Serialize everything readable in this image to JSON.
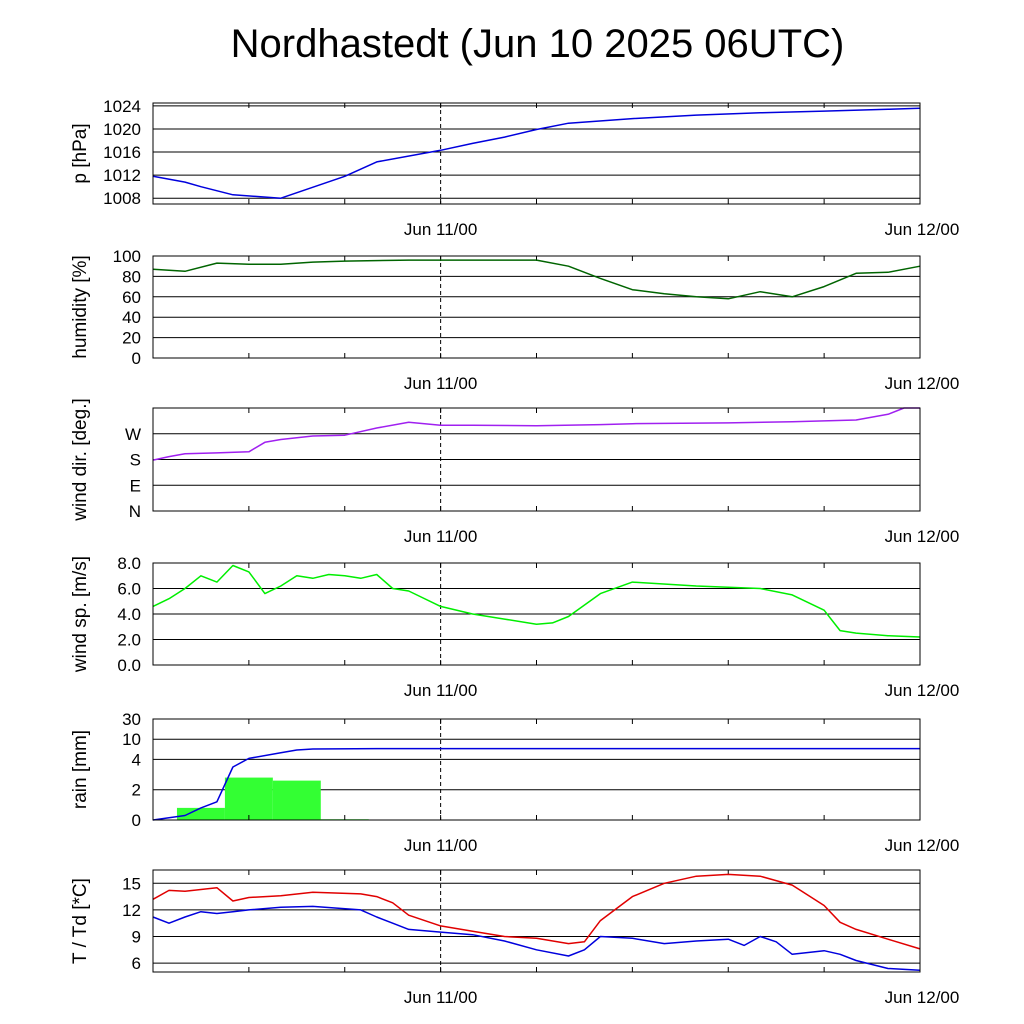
{
  "title": "Nordhastedt (Jun 10 2025 06UTC)",
  "colors": {
    "pressure": "#0000dd",
    "humidity": "#006400",
    "wind_dir": "#a020f0",
    "wind_speed": "#00ee00",
    "rain_total": "#0000dd",
    "rain_bars": "#33ff33",
    "temperature": "#e00000",
    "dewpoint": "#0000dd"
  },
  "chart_data": [
    {
      "type": "line",
      "ylabel": "p [hPa]",
      "x_ticks": [
        "Jun 11/00",
        "Jun 12/00"
      ],
      "ylim": [
        1007,
        1024.5
      ],
      "y_ticks": [
        1008,
        1012,
        1016,
        1020,
        1024
      ],
      "grid": true,
      "series": [
        {
          "x": [
            0,
            2,
            3,
            5,
            8,
            12,
            14,
            18,
            20,
            22,
            24,
            26,
            30,
            34,
            38,
            42,
            46,
            48
          ],
          "y": [
            1011.8,
            1010.8,
            1010.0,
            1008.6,
            1008.0,
            1011.8,
            1014.3,
            1016.3,
            1017.5,
            1018.6,
            1019.9,
            1021.0,
            1021.8,
            1022.4,
            1022.8,
            1023.1,
            1023.4,
            1023.6
          ]
        }
      ]
    },
    {
      "type": "line",
      "ylabel": "humidity [%]",
      "x_ticks": [
        "Jun 11/00",
        "Jun 12/00"
      ],
      "ylim": [
        0,
        100
      ],
      "y_ticks": [
        0,
        20,
        40,
        60,
        80,
        100
      ],
      "grid": true,
      "series": [
        {
          "x": [
            0,
            2,
            4,
            6,
            8,
            10,
            12,
            16,
            18,
            20,
            24,
            26,
            28,
            30,
            32,
            34,
            36,
            38,
            40,
            42,
            44,
            46,
            48
          ],
          "y": [
            87,
            85,
            93,
            92,
            92,
            94,
            95,
            96,
            96,
            96,
            96,
            90,
            78,
            67,
            63,
            60,
            58,
            65,
            60,
            70,
            83,
            84,
            90
          ]
        }
      ]
    },
    {
      "type": "line",
      "ylabel": "wind dir. [deg.]",
      "x_ticks": [
        "Jun 11/00",
        "Jun 12/00"
      ],
      "ylim": [
        0,
        360
      ],
      "y_ticks": [
        "N",
        "E",
        "S",
        "W"
      ],
      "grid": true,
      "series": [
        {
          "x": [
            0,
            1,
            2,
            4,
            6,
            7,
            8,
            10,
            12,
            14,
            16,
            18,
            20,
            24,
            28,
            30,
            36,
            40,
            44,
            46,
            47,
            48
          ],
          "y": [
            178,
            190,
            200,
            203,
            207,
            240,
            250,
            262,
            265,
            290,
            310,
            300,
            300,
            298,
            302,
            305,
            308,
            312,
            318,
            338,
            360,
            360
          ]
        }
      ]
    },
    {
      "type": "line",
      "ylabel": "wind sp. [m/s]",
      "x_ticks": [
        "Jun 11/00",
        "Jun 12/00"
      ],
      "ylim": [
        0,
        8
      ],
      "y_ticks": [
        "0.0",
        "2.0",
        "4.0",
        "6.0",
        "8.0"
      ],
      "grid": true,
      "series": [
        {
          "x": [
            0,
            1,
            2,
            3,
            4,
            5,
            6,
            7,
            8,
            9,
            10,
            11,
            12,
            13,
            14,
            15,
            16,
            18,
            20,
            22,
            24,
            25,
            26,
            28,
            30,
            34,
            36,
            38,
            40,
            42,
            43,
            44,
            46,
            48
          ],
          "y": [
            4.6,
            5.2,
            6.0,
            7.0,
            6.5,
            7.8,
            7.3,
            5.6,
            6.2,
            7.0,
            6.8,
            7.1,
            7.0,
            6.8,
            7.1,
            6.0,
            5.8,
            4.6,
            4.0,
            3.6,
            3.2,
            3.3,
            3.8,
            5.6,
            6.5,
            6.2,
            6.1,
            6.0,
            5.5,
            4.3,
            2.7,
            2.5,
            2.3,
            2.2
          ]
        }
      ]
    },
    {
      "type": "bar",
      "ylabel": "rain [mm]",
      "x_ticks": [
        "Jun 11/00",
        "Jun 12/00"
      ],
      "y_ticks": [
        "0",
        "2",
        "4",
        "10",
        "30"
      ],
      "grid": true,
      "bars": [
        {
          "x0": 1.5,
          "x1": 4.5,
          "value": 0.8
        },
        {
          "x0": 4.5,
          "x1": 7.5,
          "value": 2.8
        },
        {
          "x0": 7.5,
          "x1": 10.5,
          "value": 2.6
        },
        {
          "x0": 10.5,
          "x1": 13.5,
          "value": 0.05
        }
      ],
      "series": [
        {
          "x": [
            0,
            2,
            3,
            4,
            5,
            6,
            8,
            9,
            10,
            14,
            20,
            30,
            48
          ],
          "y": [
            0,
            0.3,
            0.8,
            1.2,
            3.5,
            4.3,
            6.0,
            6.8,
            7.1,
            7.2,
            7.2,
            7.2,
            7.2
          ]
        }
      ]
    },
    {
      "type": "line",
      "ylabel": "T / Td [*C]",
      "x_ticks": [
        "Jun 11/00",
        "Jun 12/00"
      ],
      "ylim": [
        5,
        16.5
      ],
      "y_ticks": [
        6,
        9,
        12,
        15
      ],
      "grid": true,
      "series": [
        {
          "x": [
            0,
            1,
            2,
            3,
            4,
            5,
            6,
            8,
            10,
            13,
            14,
            15,
            16,
            18,
            20,
            22,
            24,
            26,
            27,
            28,
            30,
            32,
            34,
            36,
            38,
            40,
            42,
            43,
            44,
            46,
            48
          ],
          "y": [
            13.2,
            14.2,
            14.1,
            14.3,
            14.5,
            13.0,
            13.4,
            13.6,
            14.0,
            13.8,
            13.5,
            12.8,
            11.4,
            10.2,
            9.6,
            9.0,
            8.8,
            8.2,
            8.4,
            10.8,
            13.5,
            15.0,
            15.8,
            16.0,
            15.8,
            14.8,
            12.5,
            10.6,
            9.8,
            8.7,
            7.6
          ]
        },
        {
          "x": [
            0,
            1,
            2,
            3,
            4,
            5,
            6,
            8,
            10,
            13,
            14,
            15,
            16,
            18,
            20,
            22,
            24,
            26,
            27,
            28,
            30,
            32,
            34,
            36,
            37,
            38,
            39,
            40,
            42,
            43,
            44,
            46,
            48
          ],
          "y": [
            11.2,
            10.5,
            11.2,
            11.8,
            11.6,
            11.8,
            12.0,
            12.3,
            12.4,
            12.0,
            11.2,
            10.5,
            9.8,
            9.5,
            9.2,
            8.5,
            7.5,
            6.8,
            7.5,
            9.0,
            8.8,
            8.2,
            8.5,
            8.7,
            8.0,
            9.0,
            8.4,
            7.0,
            7.4,
            7.0,
            6.3,
            5.4,
            5.2
          ]
        }
      ]
    }
  ]
}
